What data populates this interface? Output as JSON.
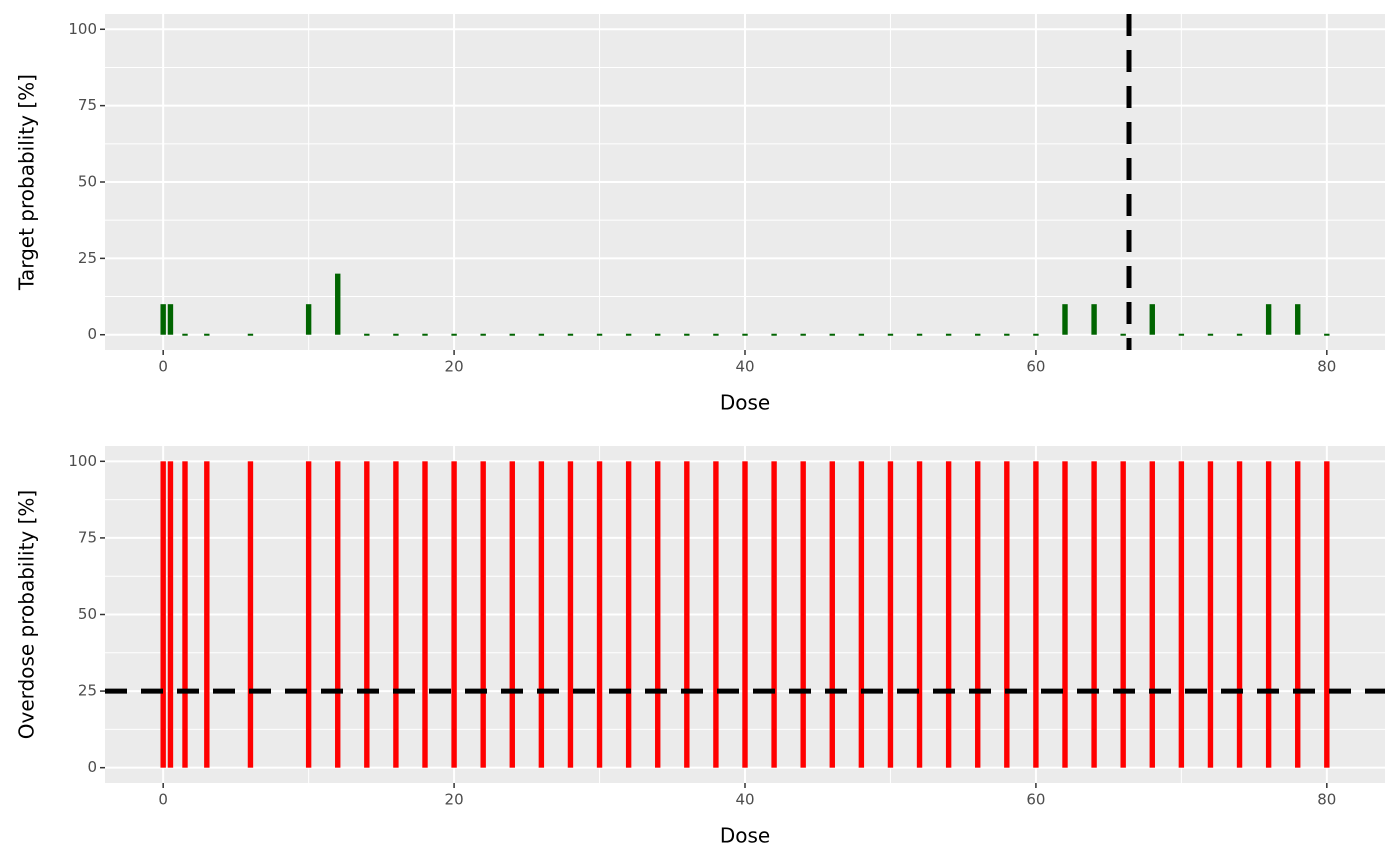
{
  "chart_data": [
    {
      "type": "bar",
      "color": "#006400",
      "x": [
        0,
        0.5,
        1.5,
        3,
        6,
        10,
        12,
        14,
        16,
        18,
        20,
        22,
        24,
        26,
        28,
        30,
        32,
        34,
        36,
        38,
        40,
        42,
        44,
        46,
        48,
        50,
        52,
        54,
        56,
        58,
        60,
        62,
        64,
        66,
        68,
        70,
        72,
        74,
        76,
        78,
        80
      ],
      "values": [
        10,
        10,
        0,
        0,
        0,
        10,
        20,
        0,
        0,
        0,
        0,
        0,
        0,
        0,
        0,
        0,
        0,
        0,
        0,
        0,
        0,
        0,
        0,
        0,
        0,
        0,
        0,
        0,
        0,
        0,
        0,
        10,
        10,
        0,
        10,
        0,
        0,
        0,
        10,
        10,
        0
      ],
      "xlabel": "Dose",
      "ylabel": "Target probability [%]",
      "xlim": [
        -4,
        84
      ],
      "xticks": [
        0,
        20,
        40,
        60,
        80
      ],
      "ylim": [
        -5,
        105
      ],
      "yticks": [
        0,
        25,
        50,
        75,
        100
      ],
      "vline": 66.4,
      "grid": true
    },
    {
      "type": "bar",
      "color": "#ff0000",
      "x": [
        0,
        0.5,
        1.5,
        3,
        6,
        10,
        12,
        14,
        16,
        18,
        20,
        22,
        24,
        26,
        28,
        30,
        32,
        34,
        36,
        38,
        40,
        42,
        44,
        46,
        48,
        50,
        52,
        54,
        56,
        58,
        60,
        62,
        64,
        66,
        68,
        70,
        72,
        74,
        76,
        78,
        80
      ],
      "values": [
        100,
        100,
        100,
        100,
        100,
        100,
        100,
        100,
        100,
        100,
        100,
        100,
        100,
        100,
        100,
        100,
        100,
        100,
        100,
        100,
        100,
        100,
        100,
        100,
        100,
        100,
        100,
        100,
        100,
        100,
        100,
        100,
        100,
        100,
        100,
        100,
        100,
        100,
        100,
        100,
        100
      ],
      "xlabel": "Dose",
      "ylabel": "Overdose probability [%]",
      "xlim": [
        -4,
        84
      ],
      "xticks": [
        0,
        20,
        40,
        60,
        80
      ],
      "ylim": [
        -5,
        105
      ],
      "yticks": [
        0,
        25,
        50,
        75,
        100
      ],
      "hline": 25,
      "grid": true
    }
  ]
}
